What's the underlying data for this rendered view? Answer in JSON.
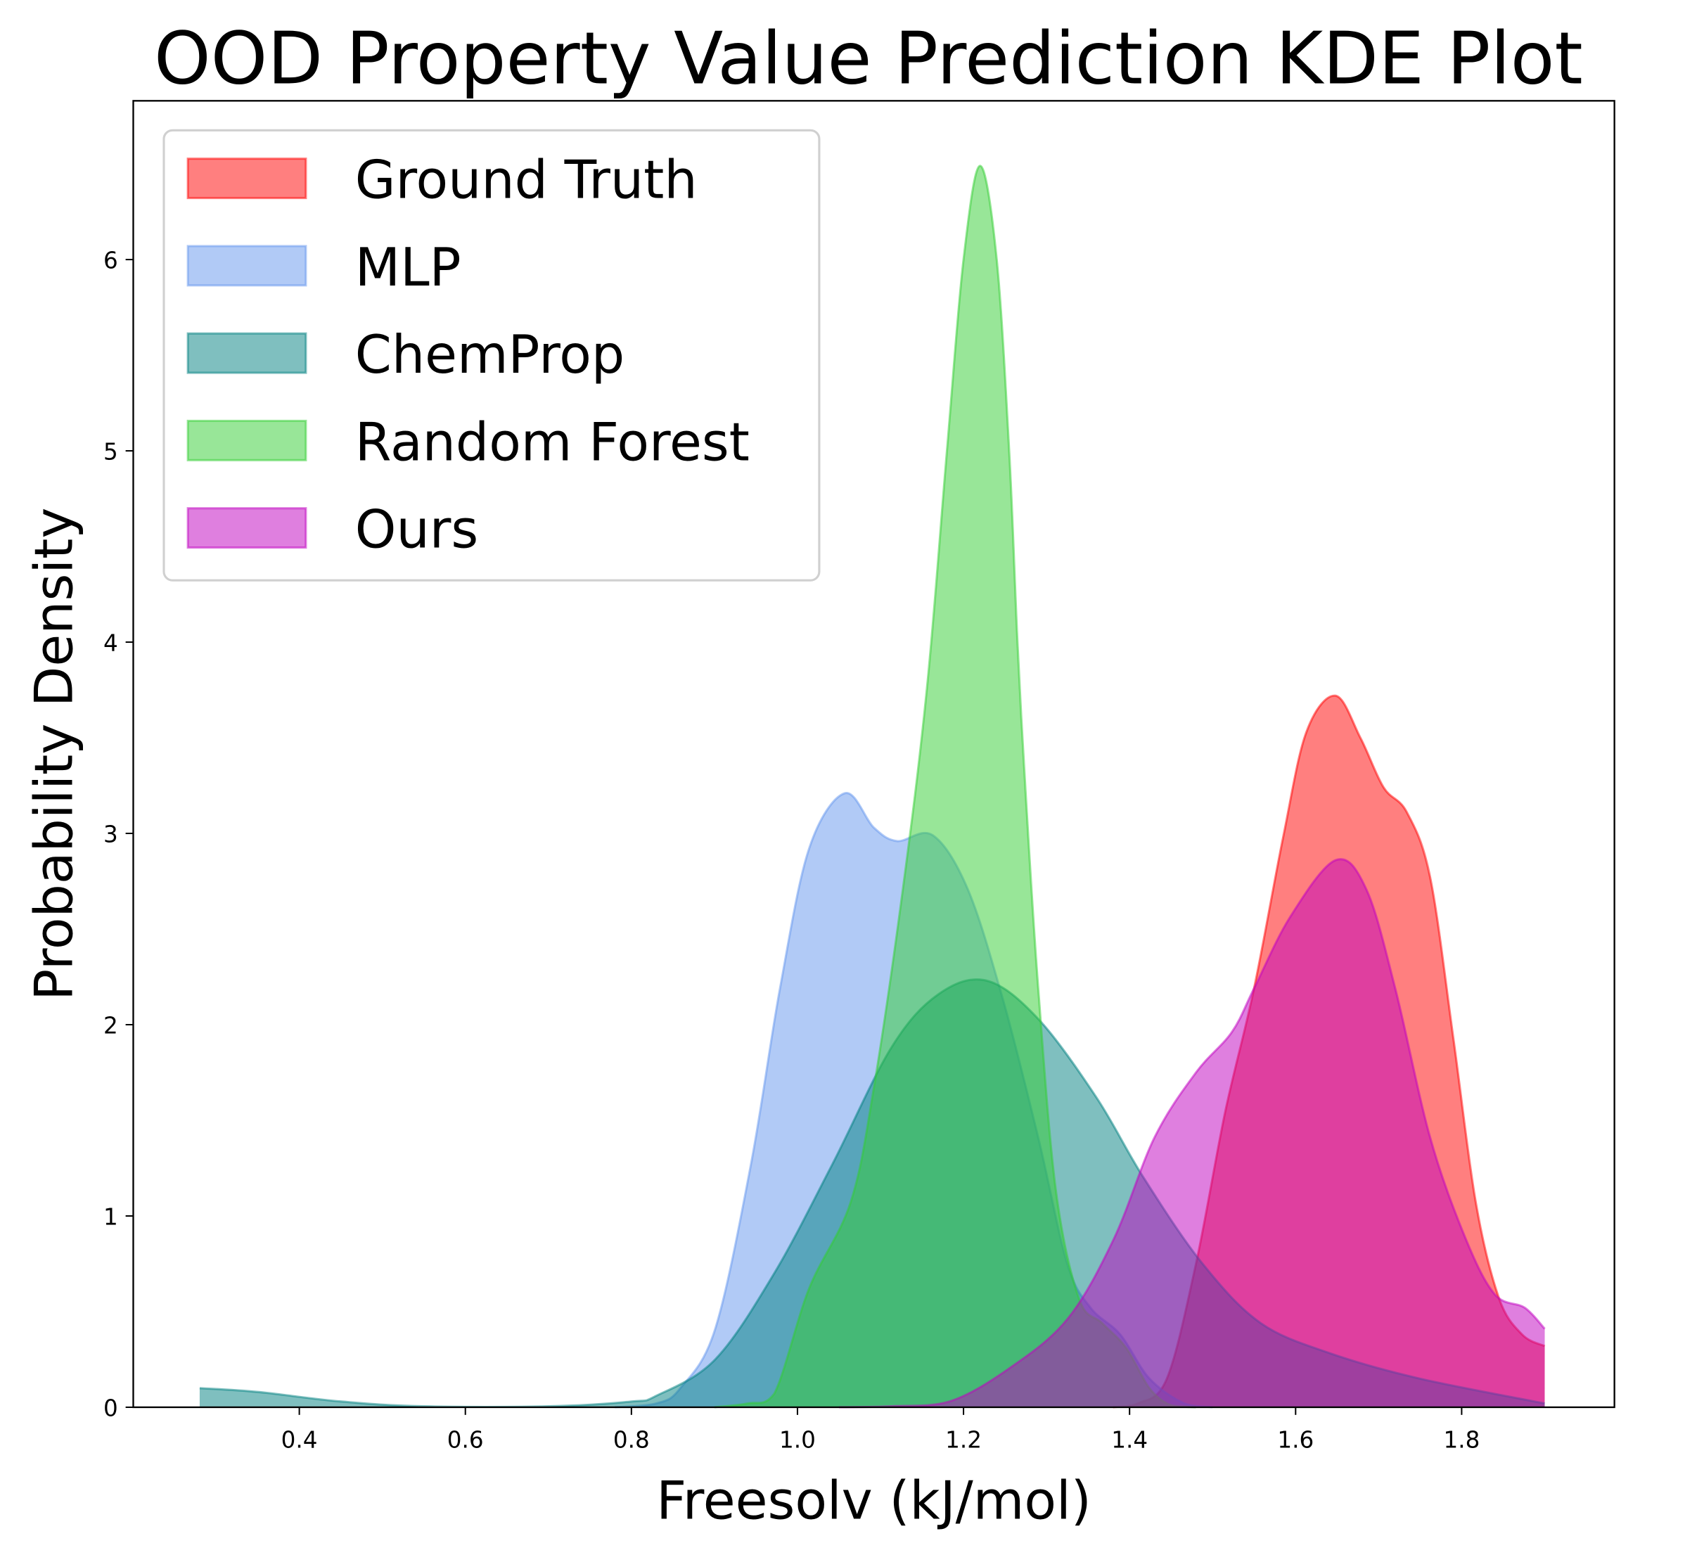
{
  "chart_data": {
    "type": "area",
    "title": "OOD Property Value Prediction KDE Plot",
    "xlabel": "Freesolv (kJ/mol)",
    "ylabel": "Probability Density",
    "xlim": [
      0.2,
      1.984
    ],
    "ylim": [
      0,
      6.83
    ],
    "xticks": [
      "0.4",
      "0.6",
      "0.8",
      "1.0",
      "1.2",
      "1.4",
      "1.6",
      "1.8"
    ],
    "xtick_values": [
      0.4,
      0.6,
      0.8,
      1.0,
      1.2,
      1.4,
      1.6,
      1.8
    ],
    "yticks": [
      "0",
      "1",
      "2",
      "3",
      "4",
      "5",
      "6"
    ],
    "ytick_values": [
      0,
      1,
      2,
      3,
      4,
      5,
      6
    ],
    "grid": false,
    "legend_position": "top-left",
    "series": [
      {
        "name": "Ground Truth",
        "color": "#ff0000",
        "points": [
          [
            1.38,
            0
          ],
          [
            1.41,
            0.02
          ],
          [
            1.445,
            0.15
          ],
          [
            1.48,
            0.75
          ],
          [
            1.515,
            1.54
          ],
          [
            1.55,
            2.19
          ],
          [
            1.585,
            2.98
          ],
          [
            1.613,
            3.53
          ],
          [
            1.648,
            3.72
          ],
          [
            1.678,
            3.5
          ],
          [
            1.706,
            3.24
          ],
          [
            1.734,
            3.11
          ],
          [
            1.762,
            2.77
          ],
          [
            1.79,
            1.93
          ],
          [
            1.817,
            1.07
          ],
          [
            1.845,
            0.57
          ],
          [
            1.873,
            0.38
          ],
          [
            1.9,
            0.32
          ]
        ]
      },
      {
        "name": "MLP",
        "color": "#6495ed",
        "points": [
          [
            0.78,
            0
          ],
          [
            0.83,
            0.02
          ],
          [
            0.859,
            0.1
          ],
          [
            0.901,
            0.41
          ],
          [
            0.944,
            1.27
          ],
          [
            0.979,
            2.19
          ],
          [
            1.014,
            2.92
          ],
          [
            1.057,
            3.21
          ],
          [
            1.092,
            3.03
          ],
          [
            1.12,
            2.96
          ],
          [
            1.163,
            2.99
          ],
          [
            1.205,
            2.71
          ],
          [
            1.247,
            2.14
          ],
          [
            1.29,
            1.41
          ],
          [
            1.325,
            0.75
          ],
          [
            1.353,
            0.52
          ],
          [
            1.389,
            0.38
          ],
          [
            1.424,
            0.15
          ],
          [
            1.466,
            0.02
          ],
          [
            1.5,
            0
          ]
        ]
      },
      {
        "name": "ChemProp",
        "color": "#008080",
        "points": [
          [
            0.28,
            0.1
          ],
          [
            0.35,
            0.08
          ],
          [
            0.45,
            0.03
          ],
          [
            0.55,
            0.005
          ],
          [
            0.7,
            0.005
          ],
          [
            0.8,
            0.03
          ],
          [
            0.83,
            0.06
          ],
          [
            0.901,
            0.25
          ],
          [
            0.972,
            0.7
          ],
          [
            1.042,
            1.27
          ],
          [
            1.113,
            1.88
          ],
          [
            1.17,
            2.16
          ],
          [
            1.228,
            2.23
          ],
          [
            1.29,
            2.03
          ],
          [
            1.36,
            1.62
          ],
          [
            1.417,
            1.2
          ],
          [
            1.488,
            0.75
          ],
          [
            1.558,
            0.44
          ],
          [
            1.643,
            0.28
          ],
          [
            1.749,
            0.15
          ],
          [
            1.9,
            0.02
          ]
        ]
      },
      {
        "name": "Random Forest",
        "color": "#32cd32",
        "points": [
          [
            0.9,
            0
          ],
          [
            0.94,
            0.02
          ],
          [
            0.972,
            0.07
          ],
          [
            1.014,
            0.62
          ],
          [
            1.064,
            1.07
          ],
          [
            1.092,
            1.67
          ],
          [
            1.127,
            2.71
          ],
          [
            1.156,
            3.76
          ],
          [
            1.18,
            5.0
          ],
          [
            1.2,
            6.0
          ],
          [
            1.22,
            6.49
          ],
          [
            1.24,
            6.0
          ],
          [
            1.255,
            5.0
          ],
          [
            1.265,
            4.0
          ],
          [
            1.275,
            3.2
          ],
          [
            1.29,
            2.19
          ],
          [
            1.311,
            1.14
          ],
          [
            1.339,
            0.57
          ],
          [
            1.367,
            0.44
          ],
          [
            1.396,
            0.31
          ],
          [
            1.424,
            0.1
          ],
          [
            1.45,
            0.01
          ],
          [
            1.48,
            0
          ]
        ]
      },
      {
        "name": "Ours",
        "color": "#bf00bf",
        "points": [
          [
            1.05,
            0
          ],
          [
            1.113,
            0.005
          ],
          [
            1.183,
            0.03
          ],
          [
            1.254,
            0.2
          ],
          [
            1.325,
            0.46
          ],
          [
            1.381,
            0.88
          ],
          [
            1.43,
            1.41
          ],
          [
            1.48,
            1.75
          ],
          [
            1.523,
            1.96
          ],
          [
            1.55,
            2.19
          ],
          [
            1.593,
            2.56
          ],
          [
            1.648,
            2.86
          ],
          [
            1.685,
            2.71
          ],
          [
            1.72,
            2.19
          ],
          [
            1.762,
            1.41
          ],
          [
            1.805,
            0.88
          ],
          [
            1.84,
            0.59
          ],
          [
            1.876,
            0.52
          ],
          [
            1.9,
            0.41
          ]
        ]
      }
    ]
  }
}
